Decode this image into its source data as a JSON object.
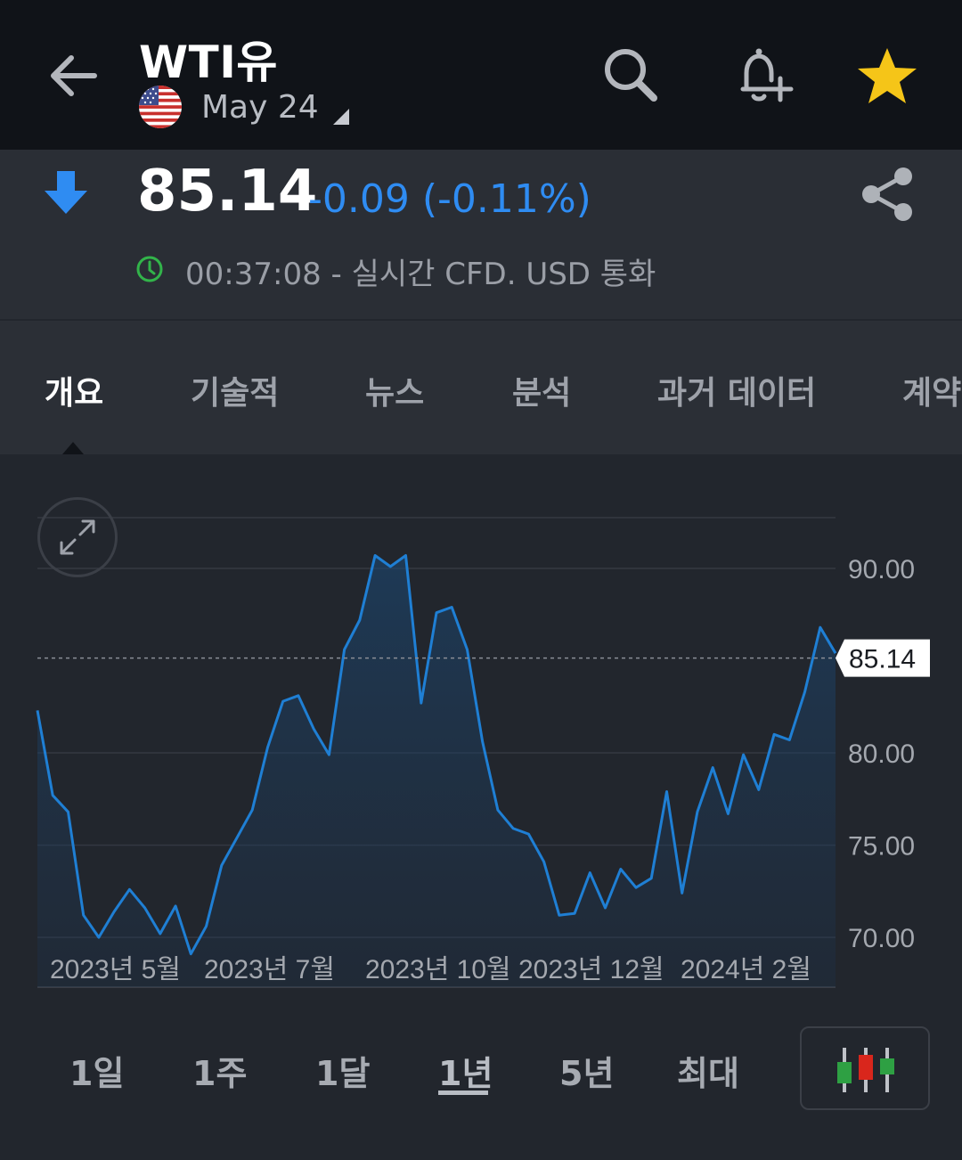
{
  "header": {
    "title": "WTI유",
    "contract": "May 24",
    "icons": [
      "back-arrow-icon",
      "search-icon",
      "add-alert-icon",
      "star-icon"
    ],
    "star_color": "#f5c518"
  },
  "quote": {
    "price": "85.14",
    "change": "-0.09 (-0.11%)",
    "status": "00:37:08 - 실시간 CFD. USD 통화",
    "direction": "down",
    "change_color": "#2f8cf2",
    "status_icon_color": "#32b44a"
  },
  "tabs": [
    {
      "label": "개요",
      "active": true
    },
    {
      "label": "기술적",
      "active": false
    },
    {
      "label": "뉴스",
      "active": false
    },
    {
      "label": "분석",
      "active": false
    },
    {
      "label": "과거 데이터",
      "active": false
    },
    {
      "label": "계약",
      "active": false
    }
  ],
  "chart_data": {
    "type": "area",
    "x_tick_labels": [
      "2023년 5월",
      "2023년 7월",
      "2023년 10월",
      "2023년 12월",
      "2024년 2월"
    ],
    "y_tick_labels": [
      "90.00",
      "80.00",
      "75.00",
      "70.00"
    ],
    "ylim": [
      67.3,
      92.8
    ],
    "current_value_label": "85.14",
    "current_value": 85.14,
    "line_color": "#1f7fd4",
    "values": [
      82.3,
      77.7,
      76.8,
      71.2,
      70.0,
      71.4,
      72.6,
      71.6,
      70.2,
      71.7,
      69.1,
      70.6,
      73.9,
      75.4,
      76.9,
      80.3,
      82.8,
      83.1,
      81.3,
      79.9,
      85.6,
      87.2,
      90.7,
      90.1,
      90.7,
      82.7,
      87.6,
      87.9,
      85.6,
      80.6,
      76.9,
      75.9,
      75.6,
      74.1,
      71.2,
      71.3,
      73.5,
      71.6,
      73.7,
      72.7,
      73.2,
      77.9,
      72.4,
      76.8,
      79.2,
      76.7,
      79.9,
      78.0,
      81.0,
      80.7,
      83.3,
      86.8,
      85.4
    ],
    "grid": true
  },
  "ranges": [
    {
      "label": "1일",
      "active": false
    },
    {
      "label": "1주",
      "active": false
    },
    {
      "label": "1달",
      "active": false
    },
    {
      "label": "1년",
      "active": true
    },
    {
      "label": "5년",
      "active": false
    },
    {
      "label": "최대",
      "active": false
    }
  ],
  "candle_colors": [
    "#2ea043",
    "#d9261c",
    "#2ea043"
  ]
}
